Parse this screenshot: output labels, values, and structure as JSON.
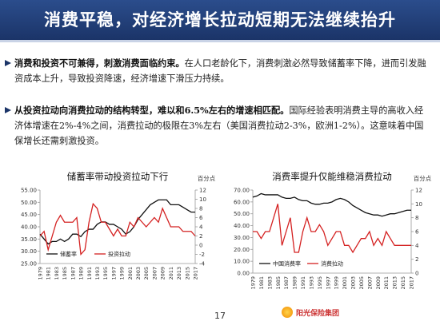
{
  "header": {
    "title": "消费平稳，对经济增长拉动短期无法继续抬升"
  },
  "bullets": [
    {
      "bold": "消费和投资不可兼得，刺激消费面临约束。",
      "text": "在人口老龄化下，消费刺激必然导致储蓄率下降，进而引发融资成本上升，导致投资降速，经济增速下滑压力持续。"
    },
    {
      "bold": "从投资拉动向消费拉动的结构转型，难以和6.5%左右的增速相匹配。",
      "text": "国际经验表明消费主导的高收入经济体增速在2%-4%之间，消费拉动的极限在3%左右（美国消费拉动2-3%，欧洲1-2%）。这意味着中国保增长还需刺激投资。"
    }
  ],
  "chart_data": [
    {
      "type": "line",
      "title": "储蓄率带动投资拉动下行",
      "y2_label": "百分点",
      "categories": [
        "1979",
        null,
        "1981",
        null,
        "1983",
        null,
        "1985",
        null,
        "1987",
        null,
        "1989",
        null,
        "1991",
        null,
        "1993",
        null,
        "1995",
        null,
        "1997",
        null,
        "1999",
        null,
        "2001",
        null,
        "2003",
        null,
        "2005",
        null,
        "2007",
        null,
        "2009",
        null,
        "2011",
        null,
        "2013",
        null,
        "2015",
        null,
        "2017"
      ],
      "ylim": [
        25,
        55
      ],
      "yticks": [
        {
          "value": 25,
          "label": "25.00"
        },
        {
          "value": 30,
          "label": "30.00"
        },
        {
          "value": 35,
          "label": "35.00"
        },
        {
          "value": 40,
          "label": "40.00"
        },
        {
          "value": 45,
          "label": "45.00"
        },
        {
          "value": 50,
          "label": "50.00"
        },
        {
          "value": 55,
          "label": "55.00"
        }
      ],
      "y2lim": [
        -4,
        12
      ],
      "y2ticks": [
        -4,
        -2,
        0,
        2,
        4,
        6,
        8,
        10,
        12
      ],
      "series": [
        {
          "name": "储蓄率",
          "color": "#111111",
          "values": [
            37,
            35,
            33,
            34,
            34,
            35,
            34,
            35,
            37,
            37,
            36,
            38,
            39,
            39,
            41,
            42,
            42,
            41,
            41,
            40,
            39,
            37,
            38,
            40,
            43,
            45,
            47,
            49,
            50,
            51,
            51,
            51,
            49,
            49,
            49,
            48,
            47,
            46,
            46
          ]
        },
        {
          "name": "投资拉动",
          "color": "#d42020",
          "axis": "y2",
          "values": [
            2,
            3,
            -1,
            2,
            5,
            6.5,
            5,
            5,
            5,
            6,
            -2,
            -1,
            5,
            9,
            8,
            5,
            5,
            3.5,
            2,
            3.5,
            2,
            2,
            5,
            4,
            6,
            5,
            4,
            5,
            6,
            5,
            8,
            6,
            4,
            4,
            4,
            3,
            3,
            3,
            2
          ]
        }
      ]
    },
    {
      "type": "line",
      "title": "消费率提升仅能维稳消费拉动",
      "y2_label": "百分点",
      "categories": [
        "1979",
        null,
        "1981",
        null,
        "1983",
        null,
        "1985",
        null,
        "1987",
        null,
        "1989",
        null,
        "1991",
        null,
        "1993",
        null,
        "1995",
        null,
        "1997",
        null,
        "1999",
        null,
        "2001",
        null,
        "2003",
        null,
        "2005",
        null,
        "2007",
        null,
        "2009",
        null,
        "2011",
        null,
        "2013",
        null,
        "2015",
        null,
        "2017"
      ],
      "ylim": [
        0,
        70
      ],
      "yticks": [
        {
          "value": 0,
          "label": "0.00"
        },
        {
          "value": 10,
          "label": "10.00"
        },
        {
          "value": 20,
          "label": "20.00"
        },
        {
          "value": 30,
          "label": "30.00"
        },
        {
          "value": 40,
          "label": "40.00"
        },
        {
          "value": 50,
          "label": "50.00"
        },
        {
          "value": 60,
          "label": "60.00"
        },
        {
          "value": 70,
          "label": "70.00"
        }
      ],
      "y2lim": [
        0,
        12
      ],
      "y2ticks": [
        0,
        2,
        4,
        6,
        8,
        10,
        12
      ],
      "series": [
        {
          "name": "中国消费率",
          "color": "#111111",
          "values": [
            64,
            65,
            67,
            66,
            66,
            66,
            66,
            64,
            63,
            63,
            64,
            62,
            61,
            61,
            59,
            58,
            58,
            59,
            59,
            60,
            62,
            63,
            62,
            60,
            57,
            55,
            53,
            51,
            50,
            49,
            49,
            48,
            49,
            50,
            50,
            51,
            52,
            53,
            53
          ]
        },
        {
          "name": "消费拉动",
          "color": "#d42020",
          "axis": "y2",
          "values": [
            6,
            6,
            5,
            6,
            6,
            8,
            10,
            4,
            6,
            8,
            3,
            3,
            6,
            8,
            6,
            6,
            7,
            6,
            4,
            5,
            6,
            6,
            4,
            4,
            3,
            4,
            5,
            5,
            6,
            4,
            5,
            4,
            6,
            5,
            4,
            4,
            4,
            4,
            4
          ]
        }
      ]
    }
  ],
  "footer": {
    "page": "17",
    "logo": "阳光保险集团"
  }
}
